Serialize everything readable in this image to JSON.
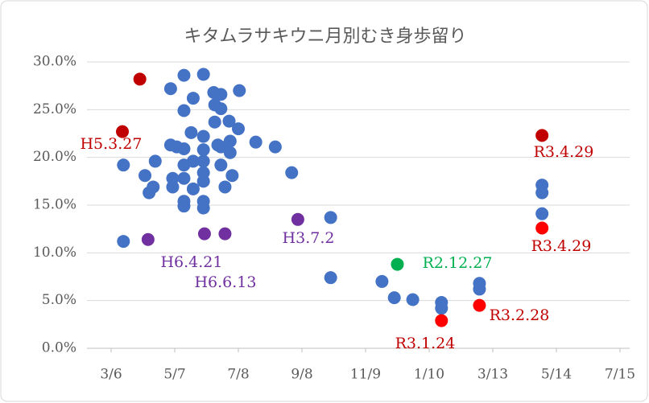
{
  "chart_data": {
    "type": "scatter",
    "title": "キタムラサキウニ月別むき身歩留り",
    "xlim": [
      0,
      496
    ],
    "xticks": [
      {
        "value": 0,
        "label": "3/6"
      },
      {
        "value": 62,
        "label": "5/7"
      },
      {
        "value": 124,
        "label": "7/8"
      },
      {
        "value": 186,
        "label": "9/8"
      },
      {
        "value": 248,
        "label": "11/9"
      },
      {
        "value": 310,
        "label": "1/10"
      },
      {
        "value": 372,
        "label": "3/13"
      },
      {
        "value": 434,
        "label": "5/14"
      },
      {
        "value": 496,
        "label": "7/15"
      }
    ],
    "ylim": [
      0,
      30
    ],
    "yticks": [
      {
        "value": 0,
        "label": "0.0%"
      },
      {
        "value": 5,
        "label": "5.0%"
      },
      {
        "value": 10,
        "label": "10.0%"
      },
      {
        "value": 15,
        "label": "15.0%"
      },
      {
        "value": 20,
        "label": "20.0%"
      },
      {
        "value": 25,
        "label": "25.0%"
      },
      {
        "value": 30,
        "label": "30.0%"
      }
    ],
    "grid": true,
    "series": [
      {
        "color": "#4472c4",
        "x": [
          12,
          12,
          33,
          37,
          41,
          43,
          58,
          58,
          60,
          60,
          64,
          71,
          71,
          71,
          71,
          71,
          71,
          71,
          78,
          80,
          80,
          80,
          90,
          90,
          90,
          90,
          90,
          90,
          90,
          90,
          100,
          101,
          101,
          104,
          107,
          107,
          107,
          107,
          111,
          115,
          116,
          116,
          118,
          124,
          125,
          141,
          160,
          176,
          214,
          214,
          264,
          276,
          294,
          322,
          322,
          359,
          359,
          420,
          420,
          420
        ],
        "values": [
          11.2,
          19.2,
          18.1,
          16.3,
          16.9,
          19.6,
          27.2,
          21.3,
          17.8,
          16.9,
          21.1,
          28.6,
          24.9,
          20.9,
          19.2,
          17.8,
          15.4,
          14.9,
          22.6,
          26.2,
          19.6,
          16.7,
          28.7,
          22.2,
          20.8,
          19.6,
          18.4,
          17.5,
          15.4,
          14.7,
          26.8,
          25.5,
          23.7,
          21.3,
          26.6,
          25.1,
          21.1,
          19.2,
          16.9,
          23.8,
          21.7,
          20.5,
          18.1,
          23.0,
          27.0,
          21.6,
          21.1,
          18.4,
          13.7,
          7.4,
          7.0,
          5.3,
          5.1,
          4.8,
          4.2,
          6.8,
          6.2,
          17.1,
          16.3,
          14.1
        ]
      },
      {
        "color": "#c00000",
        "x": [
          28,
          11,
          420
        ],
        "values": [
          28.2,
          22.7,
          22.3
        ]
      },
      {
        "color": "#ff0000",
        "x": [
          420,
          359,
          322
        ],
        "values": [
          12.6,
          4.5,
          2.9
        ]
      },
      {
        "color": "#7030a0",
        "x": [
          36,
          91,
          111,
          182
        ],
        "values": [
          11.4,
          12.0,
          12.0,
          13.5
        ]
      },
      {
        "color": "#00b050",
        "x": [
          279
        ],
        "values": [
          8.8
        ]
      }
    ],
    "annotations": [
      {
        "text": "H5.3.27",
        "color": "#c00000"
      },
      {
        "text": "R3.4.29",
        "color": "#c00000"
      },
      {
        "text": "R3.4.29",
        "color": "#c00000"
      },
      {
        "text": "H3.7.2",
        "color": "#7030a0"
      },
      {
        "text": "H6.4.21",
        "color": "#7030a0"
      },
      {
        "text": "H6.6.13",
        "color": "#7030a0"
      },
      {
        "text": "R2.12.27",
        "color": "#00b050"
      },
      {
        "text": "R3.2.28",
        "color": "#c00000"
      },
      {
        "text": "R3.1.24",
        "color": "#c00000"
      }
    ]
  }
}
